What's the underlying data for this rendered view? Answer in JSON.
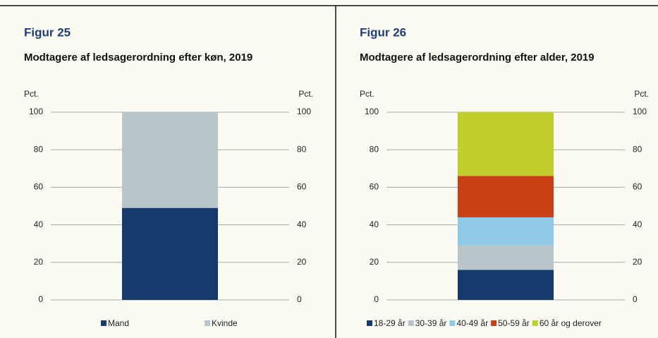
{
  "chart_data": [
    {
      "type": "bar",
      "stacked": true,
      "label": "Figur 25",
      "title": "Modtagere af ledsagerordning efter køn, 2019",
      "y_label": "Pct.",
      "y2_label": "Pct.",
      "categories": [
        null
      ],
      "series": [
        {
          "name": "Mand",
          "color": "#163a6e",
          "values": [
            49
          ]
        },
        {
          "name": "Kvinde",
          "color": "#b9c6c9",
          "values": [
            51
          ]
        }
      ],
      "ylim": [
        0,
        100
      ],
      "yticks": [
        0,
        20,
        40,
        60,
        80,
        100
      ],
      "y2lim": [
        0,
        100
      ],
      "y2ticks": [
        0,
        20,
        40,
        60,
        80,
        100
      ],
      "grid": true,
      "legend": "bottom"
    },
    {
      "type": "bar",
      "stacked": true,
      "label": "Figur 26",
      "title": "Modtagere af ledsagerordning efter alder, 2019",
      "y_label": "Pct.",
      "y2_label": "Pct.",
      "categories": [
        null
      ],
      "series": [
        {
          "name": "18-29 år",
          "color": "#163a6e",
          "values": [
            16
          ]
        },
        {
          "name": "30-39 år",
          "color": "#b9c6c9",
          "values": [
            13
          ]
        },
        {
          "name": "40-49 år",
          "color": "#8ecae6",
          "values": [
            15
          ]
        },
        {
          "name": "50-59 år",
          "color": "#c94016",
          "values": [
            22
          ]
        },
        {
          "name": "60 år og derover",
          "color": "#c0cf2c",
          "values": [
            34
          ]
        }
      ],
      "ylim": [
        0,
        100
      ],
      "yticks": [
        0,
        20,
        40,
        60,
        80,
        100
      ],
      "y2lim": [
        0,
        100
      ],
      "y2ticks": [
        0,
        20,
        40,
        60,
        80,
        100
      ],
      "grid": true,
      "legend": "bottom"
    }
  ]
}
